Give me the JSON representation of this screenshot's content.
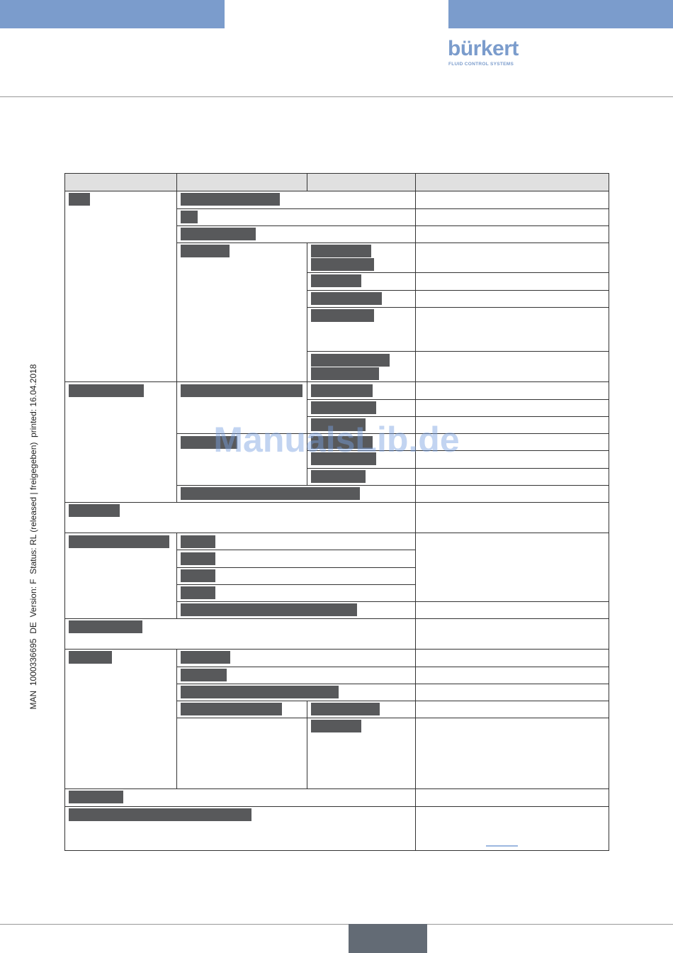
{
  "logo": {
    "brand": "bürkert",
    "tagline": "FLUID CONTROL SYSTEMS"
  },
  "side_note": "MAN  1000336695  DE  Version: F  Status: RL (released | freigegeben)  printed: 16.04.2018",
  "watermark": "ManualsLib.de"
}
